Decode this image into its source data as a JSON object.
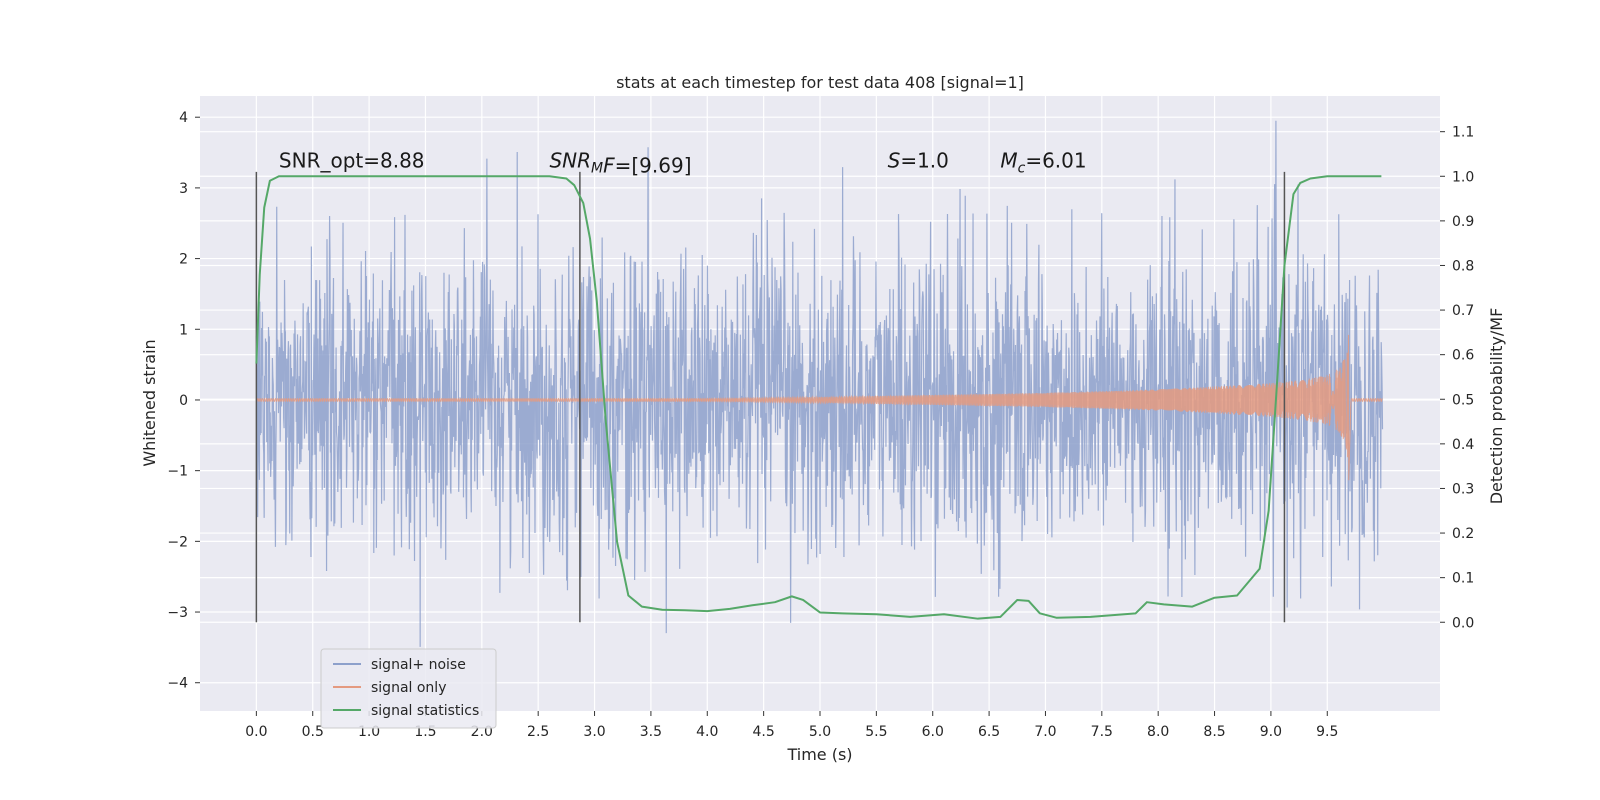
{
  "chart_data": {
    "type": "line",
    "title": "stats at each timestep for test data 408 [signal=1]",
    "xlabel": "Time (s)",
    "ylabel": "Whitened strain",
    "y2label": "Detection probability/MF",
    "xlim": [
      -0.5,
      10.5
    ],
    "ylim": [
      -4.4,
      4.3
    ],
    "y2lim": [
      -0.199,
      1.18
    ],
    "x_ticks": [
      "0.0",
      "0.5",
      "1.0",
      "1.5",
      "2.0",
      "2.5",
      "3.0",
      "3.5",
      "4.0",
      "4.5",
      "5.0",
      "5.5",
      "6.0",
      "6.5",
      "7.0",
      "7.5",
      "8.0",
      "8.5",
      "9.0",
      "9.5"
    ],
    "x_tick_values": [
      0.0,
      0.5,
      1.0,
      1.5,
      2.0,
      2.5,
      3.0,
      3.5,
      4.0,
      4.5,
      5.0,
      5.5,
      6.0,
      6.5,
      7.0,
      7.5,
      8.0,
      8.5,
      9.0,
      9.5
    ],
    "y_ticks": [
      "4",
      "3",
      "2",
      "1",
      "0",
      "−1",
      "−2",
      "−3",
      "−4"
    ],
    "y_tick_values": [
      4,
      3,
      2,
      1,
      0,
      -1,
      -2,
      -3,
      -4
    ],
    "y2_ticks": [
      "1.1",
      "1.0",
      "0.9",
      "0.8",
      "0.7",
      "0.6",
      "0.5",
      "0.4",
      "0.3",
      "0.2",
      "0.1",
      "0.0"
    ],
    "y2_tick_values": [
      1.1,
      1.0,
      0.9,
      0.8,
      0.7,
      0.6,
      0.5,
      0.4,
      0.3,
      0.2,
      0.1,
      0.0
    ],
    "grid": true,
    "legend_position": "lower-left",
    "colors": {
      "background": "#eaeaf2",
      "grid": "#ffffff",
      "noise": "#8da0cb",
      "signal": "#e49a80",
      "stat": "#55a868",
      "vline": "#555555"
    },
    "series": [
      {
        "name": "signal+ noise",
        "x_range": [
          0.0,
          9.99
        ],
        "amplitude_approx": [
          -3.8,
          4.0
        ],
        "description_values": "whitened noisy strain, ~1 std, peaks to about ±3.5"
      },
      {
        "name": "signal only",
        "x_range": [
          0.0,
          9.99
        ],
        "envelope_x": [
          0.0,
          4.0,
          5.0,
          6.0,
          7.0,
          8.0,
          8.5,
          9.0,
          9.3,
          9.5,
          9.6,
          9.66,
          9.69
        ],
        "envelope_y": [
          0.02,
          0.02,
          0.04,
          0.07,
          0.1,
          0.15,
          0.19,
          0.24,
          0.29,
          0.35,
          0.45,
          0.6,
          1.05
        ],
        "merger_x": 9.69,
        "merger_min": -1.15
      },
      {
        "name": "signal statistics",
        "axis": "right",
        "x": [
          0.0,
          0.03,
          0.07,
          0.12,
          0.2,
          0.4,
          1.0,
          2.0,
          2.6,
          2.75,
          2.82,
          2.9,
          2.96,
          3.02,
          3.1,
          3.2,
          3.3,
          3.42,
          3.6,
          3.8,
          4.0,
          4.2,
          4.4,
          4.6,
          4.75,
          4.85,
          5.0,
          5.2,
          5.5,
          5.8,
          6.1,
          6.4,
          6.6,
          6.75,
          6.85,
          6.95,
          7.1,
          7.4,
          7.8,
          7.9,
          8.05,
          8.3,
          8.5,
          8.7,
          8.9,
          8.98,
          9.05,
          9.12,
          9.2,
          9.26,
          9.35,
          9.5,
          9.98
        ],
        "y": [
          0.58,
          0.78,
          0.93,
          0.99,
          1.0,
          1.0,
          1.0,
          1.0,
          1.0,
          0.995,
          0.98,
          0.94,
          0.86,
          0.72,
          0.45,
          0.18,
          0.06,
          0.035,
          0.028,
          0.027,
          0.025,
          0.03,
          0.038,
          0.045,
          0.058,
          0.05,
          0.022,
          0.02,
          0.018,
          0.012,
          0.018,
          0.008,
          0.012,
          0.05,
          0.048,
          0.02,
          0.01,
          0.012,
          0.02,
          0.045,
          0.04,
          0.035,
          0.055,
          0.06,
          0.12,
          0.25,
          0.52,
          0.8,
          0.96,
          0.985,
          0.995,
          1.0,
          1.0
        ]
      }
    ],
    "vertical_lines_x": [
      0.0,
      2.87,
      9.12
    ],
    "annotations": [
      {
        "text": "SNR_opt=8.88",
        "x": 0.2
      },
      {
        "text": "F=[9.69]",
        "prefix": "SNR",
        "sub": "M",
        "x": 2.6
      },
      {
        "text": "S=1.0",
        "italic_prefix": "S",
        "value": "=1.0",
        "x": 5.6
      },
      {
        "text": "=6.01",
        "prefix": "M",
        "sub": "c",
        "x": 6.6
      }
    ],
    "annotation_y2": 1.02
  }
}
